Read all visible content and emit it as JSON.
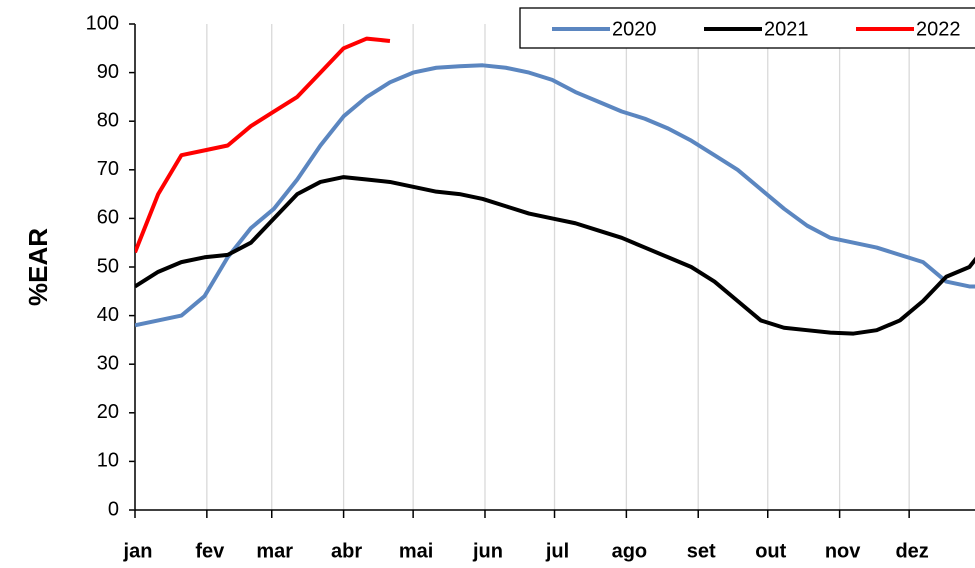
{
  "chart_data": {
    "type": "line",
    "ylabel": "%EAR",
    "xlim": [
      0,
      365
    ],
    "ylim": [
      0,
      100
    ],
    "yticks": [
      0,
      10,
      20,
      30,
      40,
      50,
      60,
      70,
      80,
      90,
      100
    ],
    "xticks": [
      {
        "value": 0,
        "label": "jan"
      },
      {
        "value": 31,
        "label": "fev"
      },
      {
        "value": 59,
        "label": "mar"
      },
      {
        "value": 90,
        "label": "abr"
      },
      {
        "value": 120,
        "label": "mai"
      },
      {
        "value": 151,
        "label": "jun"
      },
      {
        "value": 181,
        "label": "jul"
      },
      {
        "value": 212,
        "label": "ago"
      },
      {
        "value": 243,
        "label": "set"
      },
      {
        "value": 273,
        "label": "out"
      },
      {
        "value": 304,
        "label": "nov"
      },
      {
        "value": 334,
        "label": "dez"
      }
    ],
    "grid": true,
    "legend": "top-right",
    "x": [
      0,
      10,
      20,
      30,
      40,
      50,
      60,
      70,
      80,
      90,
      100,
      110,
      120,
      130,
      140,
      150,
      160,
      170,
      180,
      190,
      200,
      210,
      220,
      230,
      240,
      250,
      260,
      270,
      280,
      290,
      300,
      310,
      320,
      330,
      340,
      350,
      360,
      365
    ],
    "series": [
      {
        "name": "2020",
        "color": "#5b86c0",
        "values": [
          38,
          39,
          40,
          44,
          52,
          58,
          62,
          68,
          75,
          81,
          85,
          88,
          90,
          91,
          91.3,
          91.5,
          91,
          90,
          88.5,
          86,
          84,
          82,
          80.5,
          78.5,
          76,
          73,
          70,
          66,
          62,
          58.5,
          56,
          55,
          54,
          52.5,
          51,
          47,
          46,
          46
        ]
      },
      {
        "name": "2021",
        "color": "#000000",
        "values": [
          46,
          49,
          51,
          52,
          52.5,
          55,
          60,
          65,
          67.5,
          68.5,
          68,
          67.5,
          66.5,
          65.5,
          65,
          64,
          62.5,
          61,
          60,
          59,
          57.5,
          56,
          54,
          52,
          50,
          47,
          43,
          39,
          37.5,
          37,
          36.5,
          36.3,
          37,
          39,
          43,
          48,
          50,
          53
        ]
      },
      {
        "name": "2022",
        "color": "#ff0000",
        "values": [
          53,
          65,
          73,
          74,
          75,
          79,
          82,
          85,
          90,
          95,
          97,
          96.5,
          null,
          null,
          null,
          null,
          null,
          null,
          null,
          null,
          null,
          null,
          null,
          null,
          null,
          null,
          null,
          null,
          null,
          null,
          null,
          null,
          null,
          null,
          null,
          null,
          null,
          null
        ]
      }
    ]
  }
}
